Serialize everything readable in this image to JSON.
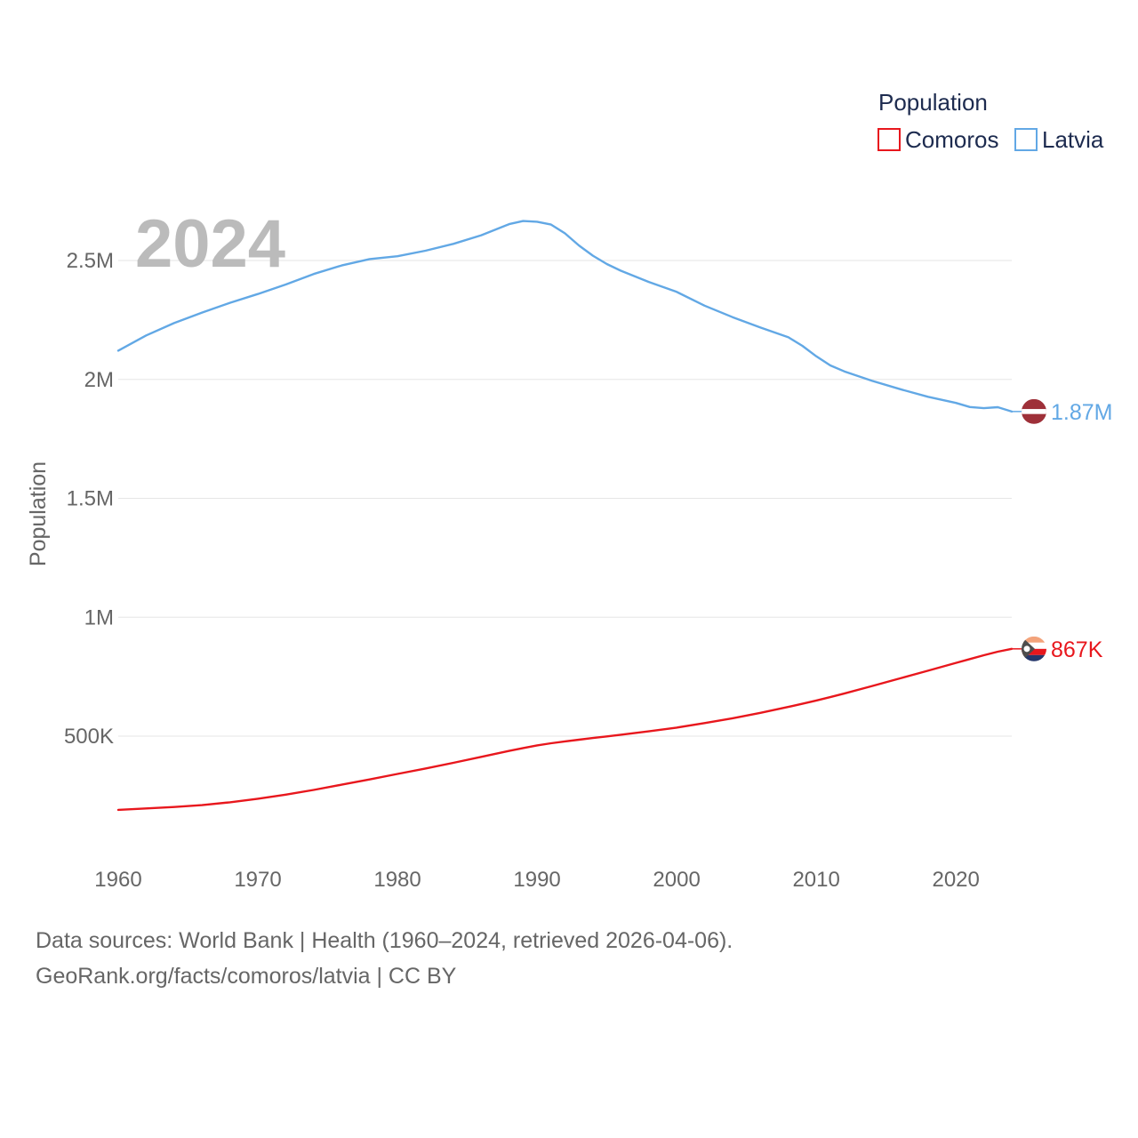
{
  "chart_data": {
    "type": "line",
    "title": "",
    "ylabel": "Population",
    "xlabel": "",
    "year_label": "2024",
    "xlim": [
      1960,
      2024
    ],
    "ylim": [
      0,
      2800000
    ],
    "x_ticks": [
      1960,
      1970,
      1980,
      1990,
      2000,
      2010,
      2020
    ],
    "x_tick_labels": [
      "1960",
      "1970",
      "1980",
      "1990",
      "2000",
      "2010",
      "2020"
    ],
    "y_ticks": [
      500000,
      1000000,
      1500000,
      2000000,
      2500000
    ],
    "y_tick_labels": [
      "500K",
      "1M",
      "1.5M",
      "2M",
      "2.5M"
    ],
    "legend": {
      "title": "Population",
      "position": "top-right",
      "entries": [
        "Comoros",
        "Latvia"
      ]
    },
    "x": [
      1960,
      1962,
      1964,
      1966,
      1968,
      1970,
      1972,
      1974,
      1976,
      1978,
      1980,
      1982,
      1984,
      1986,
      1988,
      1989,
      1990,
      1991,
      1992,
      1993,
      1994,
      1995,
      1996,
      1998,
      2000,
      2002,
      2004,
      2006,
      2008,
      2009,
      2010,
      2011,
      2012,
      2014,
      2016,
      2018,
      2020,
      2021,
      2022,
      2023,
      2024
    ],
    "series": [
      {
        "name": "Comoros",
        "color": "#e8171d",
        "end_label": "867K",
        "values": [
          190000,
          196000,
          202000,
          210000,
          222000,
          237000,
          254000,
          274000,
          296000,
          318000,
          341000,
          364000,
          388000,
          413000,
          438000,
          450000,
          461000,
          470000,
          478000,
          485000,
          492000,
          499000,
          506000,
          520000,
          536000,
          555000,
          575000,
          598000,
          623000,
          636000,
          650000,
          664000,
          679000,
          711000,
          743000,
          775000,
          808000,
          824000,
          840000,
          855000,
          867000
        ]
      },
      {
        "name": "Latvia",
        "color": "#62a8e5",
        "end_label": "1.87M",
        "values": [
          2121000,
          2185000,
          2237000,
          2281000,
          2322000,
          2359000,
          2399000,
          2443000,
          2479000,
          2506000,
          2518000,
          2541000,
          2570000,
          2606000,
          2653000,
          2666000,
          2663000,
          2651000,
          2614000,
          2563000,
          2520000,
          2485000,
          2457000,
          2410000,
          2368000,
          2310000,
          2262000,
          2218000,
          2177000,
          2141000,
          2097000,
          2059000,
          2034000,
          1994000,
          1959000,
          1927000,
          1901000,
          1884000,
          1879000,
          1883000,
          1865000
        ]
      }
    ]
  },
  "source": {
    "line1": "Data sources: World Bank | Health (1960–2024, retrieved 2026-04-06).",
    "line2": "GeoRank.org/facts/comoros/latvia | CC BY"
  }
}
